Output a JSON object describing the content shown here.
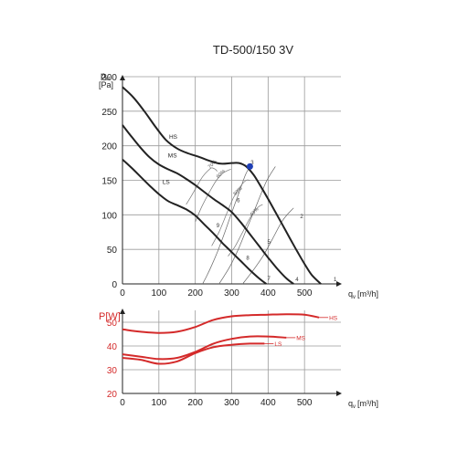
{
  "title": "TD-500/150 3V",
  "chart_data": [
    {
      "type": "line",
      "ylabel": "p",
      "ylabel_sub": "st",
      "ylabel_unit": "[Pa]",
      "xlabel": "q",
      "xlabel_sub": "v",
      "xlabel_unit": "[m³/h]",
      "xlim": [
        0,
        600
      ],
      "ylim": [
        0,
        300
      ],
      "xticks": [
        0,
        100,
        200,
        300,
        400,
        500
      ],
      "yticks": [
        0,
        50,
        100,
        150,
        200,
        250,
        300
      ],
      "grid": true,
      "series": [
        {
          "name": "HS",
          "color": "#222222",
          "label_at": [
            128,
            210
          ],
          "x": [
            0,
            30,
            60,
            90,
            120,
            150,
            180,
            210,
            240,
            270,
            300,
            320,
            340,
            360,
            380,
            400,
            420,
            440,
            460,
            480,
            500,
            520,
            545
          ],
          "y": [
            285,
            270,
            250,
            228,
            208,
            196,
            189,
            184,
            178,
            174,
            175,
            175,
            170,
            158,
            141,
            123,
            104,
            85,
            66,
            47,
            29,
            13,
            0
          ]
        },
        {
          "name": "MS",
          "color": "#222222",
          "label_at": [
            125,
            183
          ],
          "x": [
            0,
            25,
            50,
            75,
            100,
            125,
            150,
            175,
            200,
            225,
            250,
            275,
            300,
            325,
            350,
            375,
            400,
            425,
            450,
            470
          ],
          "y": [
            230,
            213,
            197,
            183,
            173,
            166,
            160,
            152,
            143,
            133,
            123,
            114,
            104,
            89,
            72,
            55,
            38,
            22,
            8,
            0
          ]
        },
        {
          "name": "LS",
          "color": "#222222",
          "label_at": [
            110,
            145
          ],
          "x": [
            0,
            25,
            50,
            75,
            100,
            125,
            150,
            175,
            200,
            225,
            250,
            275,
            300,
            325,
            350,
            375,
            395
          ],
          "y": [
            180,
            168,
            155,
            142,
            130,
            120,
            114,
            108,
            99,
            86,
            73,
            59,
            46,
            33,
            20,
            8,
            0
          ]
        }
      ],
      "system_curves": [
        {
          "x": [
            220,
            232,
            246,
            262,
            280,
            298,
            320,
            338,
            350
          ],
          "y": [
            0,
            12,
            28,
            48,
            73,
            100,
            132,
            158,
            170
          ]
        },
        {
          "x": [
            265,
            280,
            298,
            318,
            340,
            365,
            395,
            420
          ],
          "y": [
            0,
            12,
            28,
            50,
            78,
            110,
            148,
            170
          ]
        },
        {
          "x": [
            330,
            345,
            365,
            388,
            412,
            440,
            470
          ],
          "y": [
            0,
            10,
            24,
            42,
            65,
            92,
            110
          ]
        }
      ],
      "iso_lines": [
        {
          "label": "70%",
          "x": [
            175,
            190,
            205,
            220,
            235,
            245,
            255,
            260
          ],
          "y": [
            115,
            128,
            142,
            155,
            164,
            168,
            166,
            163
          ]
        },
        {
          "label": "60%",
          "x": [
            200,
            218,
            238,
            258,
            275,
            288,
            298
          ],
          "y": [
            90,
            112,
            132,
            150,
            160,
            164,
            166
          ]
        },
        {
          "label": "50%",
          "x": [
            245,
            265,
            285,
            305,
            325,
            340,
            350
          ],
          "y": [
            55,
            75,
            100,
            125,
            142,
            150,
            150
          ]
        },
        {
          "label": "40%",
          "x": [
            290,
            310,
            330,
            350,
            370,
            385
          ],
          "y": [
            40,
            55,
            75,
            95,
            110,
            115
          ]
        }
      ],
      "annotations": [
        {
          "text": "1",
          "x": 580,
          "y": 4
        },
        {
          "text": "2",
          "x": 488,
          "y": 95
        },
        {
          "text": "3",
          "x": 352,
          "y": 173
        },
        {
          "text": "4",
          "x": 475,
          "y": 4
        },
        {
          "text": "5",
          "x": 398,
          "y": 58
        },
        {
          "text": "6",
          "x": 314,
          "y": 118
        },
        {
          "text": "7",
          "x": 398,
          "y": 5
        },
        {
          "text": "8",
          "x": 340,
          "y": 35
        },
        {
          "text": "9",
          "x": 258,
          "y": 82
        }
      ],
      "marker": {
        "x": 350,
        "y": 170,
        "color": "#1f3fb5"
      }
    },
    {
      "type": "line",
      "ylabel": "P[W]",
      "xlabel": "q",
      "xlabel_sub": "v",
      "xlabel_unit": "[m³/h]",
      "xlim": [
        0,
        600
      ],
      "ylim": [
        20,
        55
      ],
      "xticks": [
        0,
        100,
        200,
        300,
        400,
        500
      ],
      "yticks": [
        20,
        30,
        40,
        50
      ],
      "grid": true,
      "series": [
        {
          "name": "HS",
          "color": "#d42a2a",
          "x": [
            0,
            50,
            100,
            150,
            200,
            250,
            300,
            350,
            400,
            450,
            500,
            540
          ],
          "y": [
            47,
            46,
            45.5,
            46,
            48,
            51,
            52.5,
            53,
            53.2,
            53.4,
            53.2,
            52
          ]
        },
        {
          "name": "MS",
          "color": "#d42a2a",
          "x": [
            0,
            50,
            100,
            150,
            200,
            250,
            300,
            350,
            400,
            450
          ],
          "y": [
            36.5,
            35.5,
            34.5,
            35,
            37.5,
            41,
            43,
            44,
            44,
            43.5
          ]
        },
        {
          "name": "LS",
          "color": "#d42a2a",
          "x": [
            0,
            50,
            100,
            150,
            200,
            250,
            300,
            350,
            390
          ],
          "y": [
            35,
            34.2,
            32.5,
            33.5,
            37,
            39.5,
            40.5,
            41,
            41
          ]
        }
      ]
    }
  ]
}
